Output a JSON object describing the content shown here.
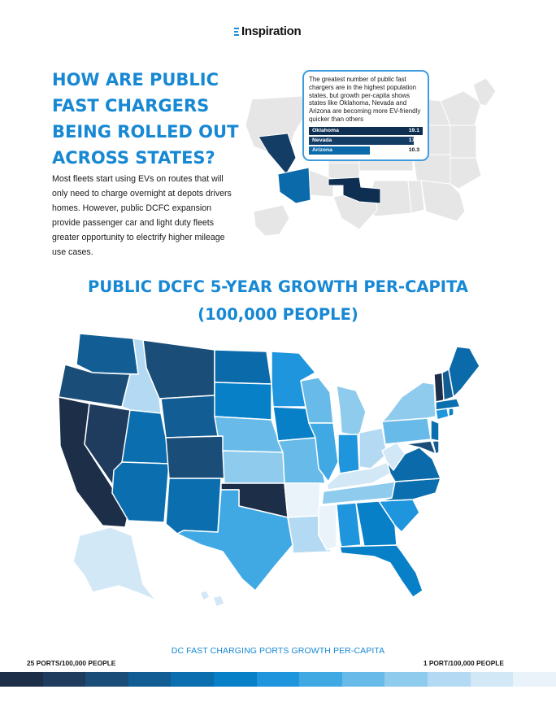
{
  "brand": {
    "name": "Inspiration",
    "icon": "stacked-lines-logo-icon",
    "accent_color": "#1788d3"
  },
  "headline": "HOW ARE PUBLIC FAST CHARGERS BEING ROLLED OUT ACROSS STATES?",
  "intro": "Most fleets start using EVs on routes that will only need to charge overnight at depots drivers homes. However, public DCFC expansion provide passenger car and light duty fleets greater opportunity to electrify higher mileage use cases.",
  "callout": {
    "text": "The greatest number of public fast chargers are in the highest population states, but growth per-capita shows states like Oklahoma, Nevada and Arizona are becoming more EV-friendly quicker than others",
    "bars": [
      {
        "state": "Oklahoma",
        "value": 19.1,
        "label": "19.1",
        "color": "#0e2f52"
      },
      {
        "state": "Nevada",
        "value": 17.6,
        "label": "17.6",
        "color": "#143d66"
      },
      {
        "state": "Arizona",
        "value": 10.3,
        "label": "10.3",
        "color": "#0b6aaa"
      }
    ]
  },
  "map_title": "PUBLIC DCFC 5-YEAR GROWTH PER-CAPITA (100,000 PEOPLE)",
  "legend": {
    "title": "DC FAST CHARGING PORTS GROWTH PER-CAPITA",
    "max_label": "25 PORTS/100,000 PEOPLE",
    "min_label": "1 PORT/100,000 PEOPLE",
    "colors": [
      "#1c2e48",
      "#1f3c5e",
      "#1a4d78",
      "#125d93",
      "#0b6eae",
      "#0880c8",
      "#1e95dd",
      "#40a9e4",
      "#68bbe8",
      "#8fcbed",
      "#b3daf2",
      "#d2e8f6",
      "#eaf3fa"
    ]
  }
}
